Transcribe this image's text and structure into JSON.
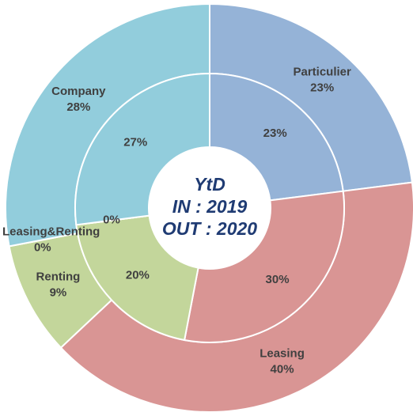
{
  "chart_data": {
    "type": "donut",
    "center_label": [
      "YtD",
      "IN : 2019",
      "OUT : 2020"
    ],
    "categories": [
      "Particulier",
      "Leasing",
      "Renting",
      "Leasing&Renting",
      "Company"
    ],
    "colors": [
      "#95b3d7",
      "#d99594",
      "#c3d69b",
      "#c3d69b",
      "#92cddc"
    ],
    "series": [
      {
        "values": [
          23,
          40,
          9,
          0,
          28
        ],
        "value_labels": [
          "23%",
          "40%",
          "9%",
          "0%",
          "28%"
        ]
      },
      {
        "values": [
          23,
          30,
          20,
          0,
          27
        ],
        "value_labels": [
          "23%",
          "30%",
          "20%",
          "0%",
          "27%"
        ]
      }
    ]
  }
}
